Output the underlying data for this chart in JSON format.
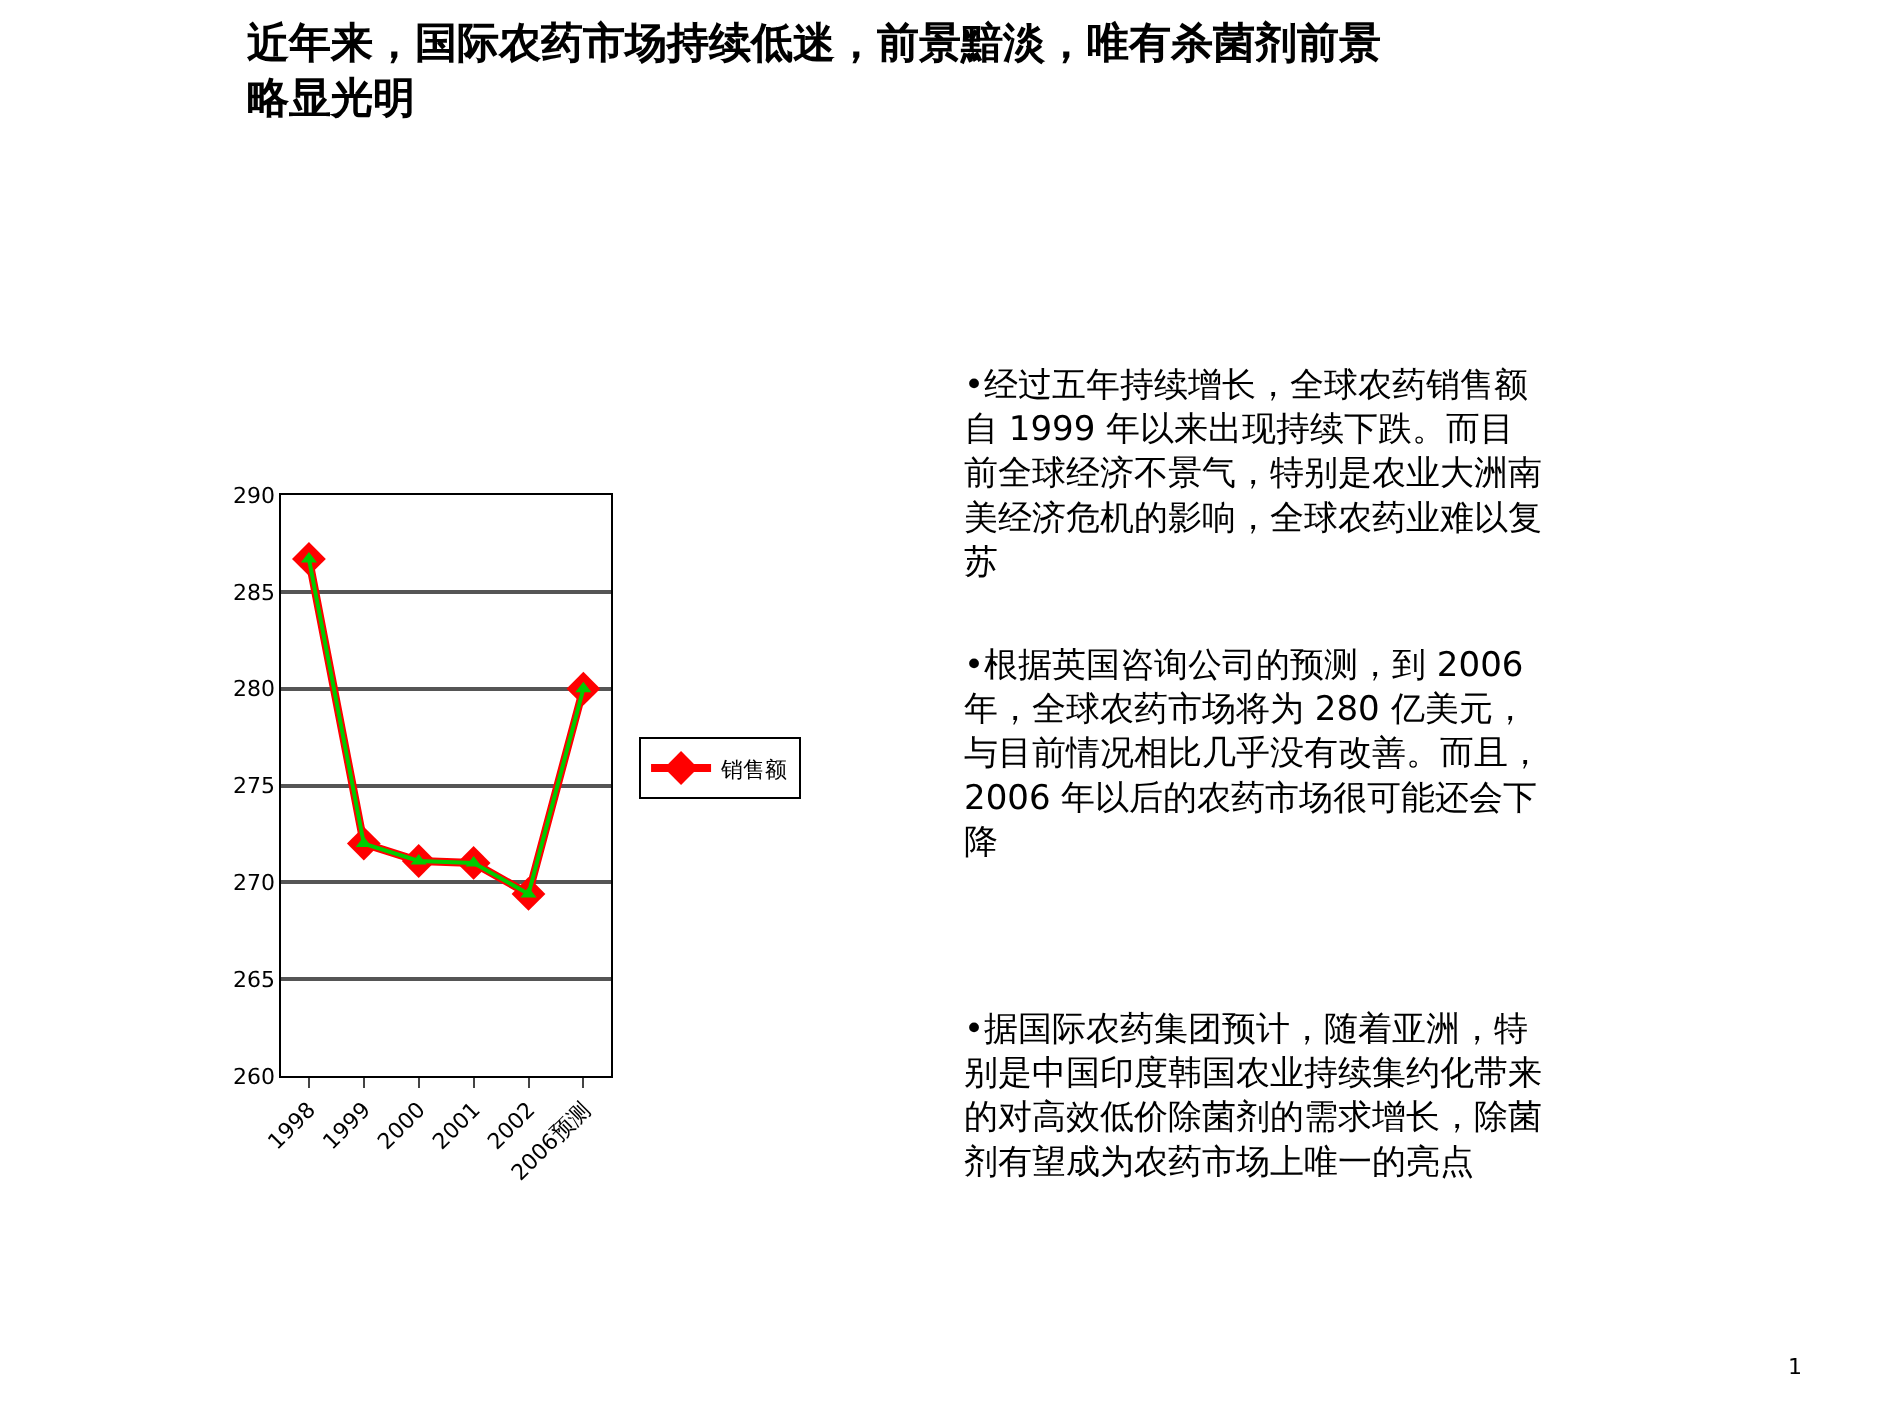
{
  "chart_data": {
    "type": "line",
    "title": "近年来，国际农药市场持续低迷，前景黯淡，唯有杀菌剂前景略显光明",
    "categories": [
      "1998",
      "1999",
      "2000",
      "2001",
      "2002",
      "2006预测"
    ],
    "series": [
      {
        "name": "销售额",
        "color": "#ff0000",
        "marker": "diamond",
        "values": [
          286.7,
          272.0,
          271.1,
          271.0,
          269.4,
          280.0
        ]
      },
      {
        "color": "#00cc00",
        "marker": "triangle",
        "values": [
          286.7,
          272.0,
          271.1,
          271.0,
          269.4,
          280.0
        ]
      }
    ],
    "ylim": [
      260,
      290
    ],
    "yticks": [
      260,
      265,
      270,
      275,
      280,
      285,
      290
    ],
    "grid": "y",
    "legend": "right",
    "line_style": "solid",
    "annotations": [
      "•经过五年持续增长，全球农药销售额自 1999 年以来出现持续下跌。而目前全球经济不景气，特别是农业大洲南美经济危机的影响，全球农药业难以复苏",
      "•根据英国咨询公司的预测，到 2006 年，全球农药市场将为 280 亿美元，与目前情况相比几乎没有改善。而且，2006 年以后的农药市场很可能还会下降",
      "•据国际农药集团预计，随着亚洲，特别是中国印度韩国农业持续集约化带来的对高效低价除菌剂的需求增长，除菌剂有望成为农药市场上唯一的亮点",
      "1"
    ]
  }
}
